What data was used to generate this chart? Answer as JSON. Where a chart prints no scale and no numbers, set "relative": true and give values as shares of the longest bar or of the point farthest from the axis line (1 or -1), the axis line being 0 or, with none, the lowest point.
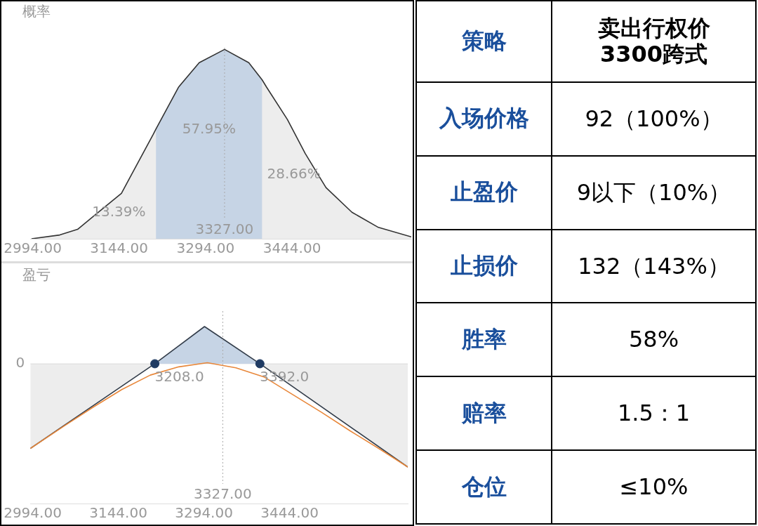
{
  "chart_data": [
    {
      "type": "area",
      "title": "概率",
      "relative": true,
      "x": [
        2992,
        3041,
        3072,
        3104,
        3148,
        3203,
        3208,
        3247,
        3283,
        3327,
        3369,
        3392,
        3400,
        3436,
        3467,
        3503,
        3548,
        3594,
        3651
      ],
      "values": [
        0,
        0.02,
        0.05,
        0.13,
        0.24,
        0.55,
        0.58,
        0.8,
        0.93,
        1,
        0.93,
        0.84,
        0.8,
        0.63,
        0.45,
        0.27,
        0.14,
        0.06,
        0.01
      ],
      "color": "#333333",
      "xlim": [
        2990,
        3651
      ],
      "xticks": [
        {
          "value": 2994,
          "label": "2994.00"
        },
        {
          "value": 3144,
          "label": "3144.00"
        },
        {
          "value": 3294,
          "label": "3294.00"
        },
        {
          "value": 3444,
          "label": "3444.00"
        }
      ],
      "bands": [
        {
          "axis": "x",
          "from": 3208,
          "to": 3392,
          "color": "#d6e5f7"
        }
      ],
      "ref_lines": [
        {
          "axis": "x",
          "value": 3327,
          "label": "3327.00",
          "color": "#aaaaaa",
          "line_style": "dotted"
        }
      ],
      "annotations": [
        "13.39%",
        "57.95%",
        "28.66%"
      ]
    },
    {
      "type": "area",
      "title": "盈亏",
      "relative": true,
      "series": [
        {
          "type": "area",
          "color": "#333d4a",
          "x": [
            2990,
            3208,
            3295,
            3392,
            3651
          ],
          "values": [
            -0.82,
            0,
            0.36,
            0,
            -1
          ]
        },
        {
          "type": "line",
          "color": "#e8873a",
          "x": [
            2990,
            3050,
            3100,
            3150,
            3200,
            3250,
            3300,
            3350,
            3400,
            3450,
            3500,
            3550,
            3600,
            3651
          ],
          "values": [
            -0.82,
            -0.6,
            -0.42,
            -0.25,
            -0.11,
            -0.03,
            0.01,
            -0.04,
            -0.13,
            -0.3,
            -0.47,
            -0.65,
            -0.82,
            -1
          ]
        },
        {
          "type": "scatter",
          "color": "#1f3b63",
          "x": [
            3208,
            3392
          ],
          "values": [
            0,
            0
          ]
        }
      ],
      "xlim": [
        2990,
        3651
      ],
      "xticks": [
        {
          "value": 2994,
          "label": "2994.00"
        },
        {
          "value": 3144,
          "label": "3144.00"
        },
        {
          "value": 3294,
          "label": "3294.00"
        },
        {
          "value": 3444,
          "label": "3444.00"
        }
      ],
      "bands": [
        {
          "axis": "x",
          "from": 3208,
          "to": 3392,
          "color": "#d6e5f7"
        }
      ],
      "ref_lines": [
        {
          "axis": "x",
          "value": 3327,
          "label": "3327.00",
          "color": "#aaaaaa",
          "line_style": "dotted"
        },
        {
          "axis": "y",
          "value": 0,
          "label": "0",
          "color": "#e6e6e6",
          "line_style": "solid"
        }
      ],
      "annotations": [
        {
          "text": "3208.0",
          "x": 3208,
          "y": 0
        },
        {
          "text": "3392.0",
          "x": 3392,
          "y": 0
        }
      ]
    },
    {
      "type": "other",
      "annotations": [
        "策略",
        "卖出行权价 3300跨式",
        "入场价格",
        "92（100%）",
        "止盈价",
        "9以下（10%）",
        "止损价",
        "132（143%）",
        "胜率",
        "58%",
        "赔率",
        "1.5：1",
        "仓位",
        "≤10%"
      ]
    }
  ]
}
